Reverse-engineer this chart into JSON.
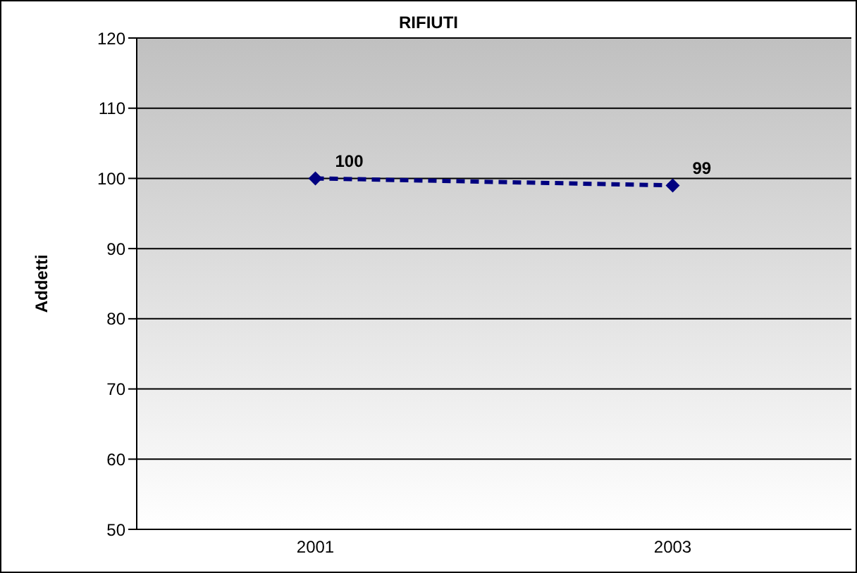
{
  "chart_data": {
    "type": "line",
    "title": "RIFIUTI",
    "ylabel": "Addetti",
    "categories": [
      "2001",
      "2003"
    ],
    "series": [
      {
        "color": "#000080",
        "values": [
          100,
          99
        ]
      }
    ],
    "ylim": [
      50,
      120
    ],
    "yticks": [
      50,
      60,
      70,
      80,
      90,
      100,
      110,
      120
    ],
    "grid": "y",
    "marker": "diamond",
    "line_style": "dashed",
    "data_labels": true
  }
}
